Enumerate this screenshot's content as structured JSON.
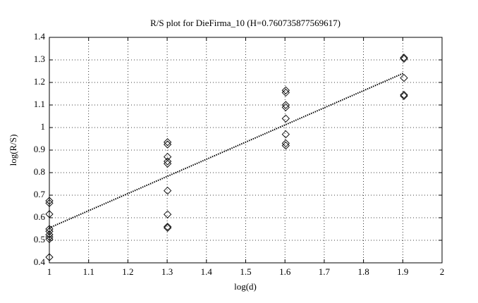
{
  "chart_data": {
    "type": "scatter",
    "title": "R/S plot for DieFirma_10 (H=0.760735877569617)",
    "x_label": "log(d)",
    "y_label": "log(R/S)",
    "xlim": [
      1,
      2
    ],
    "xticks": [
      1,
      1.1,
      1.2,
      1.3,
      1.4,
      1.5,
      1.6,
      1.7,
      1.8,
      1.9,
      2
    ],
    "ylim": [
      0.4,
      1.4
    ],
    "yticks": [
      0.4,
      0.5,
      0.6,
      0.7,
      0.8,
      0.9,
      1,
      1.1,
      1.2,
      1.3,
      1.4
    ],
    "grid": true,
    "series": [
      {
        "color": "#000000",
        "marker": "diamond",
        "x": [
          1,
          1,
          1,
          1,
          1,
          1,
          1,
          1,
          1,
          1.301,
          1.301,
          1.301,
          1.301,
          1.301,
          1.301,
          1.301,
          1.301,
          1.301,
          1.602,
          1.602,
          1.602,
          1.602,
          1.602,
          1.602,
          1.602,
          1.602,
          1.903,
          1.903,
          1.903,
          1.903,
          1.903
        ],
        "values": [
          0.675,
          0.665,
          0.616,
          0.55,
          0.54,
          0.525,
          0.515,
          0.505,
          0.425,
          0.935,
          0.925,
          0.87,
          0.85,
          0.84,
          0.72,
          0.615,
          0.56,
          0.555,
          1.165,
          1.155,
          1.1,
          1.09,
          1.04,
          0.97,
          0.93,
          0.92,
          1.31,
          1.305,
          1.22,
          1.145,
          1.14
        ]
      },
      {
        "color": "#000000",
        "style": "dotted",
        "x": [
          1,
          1.903
        ],
        "values": [
          0.555,
          1.242
        ]
      }
    ]
  }
}
